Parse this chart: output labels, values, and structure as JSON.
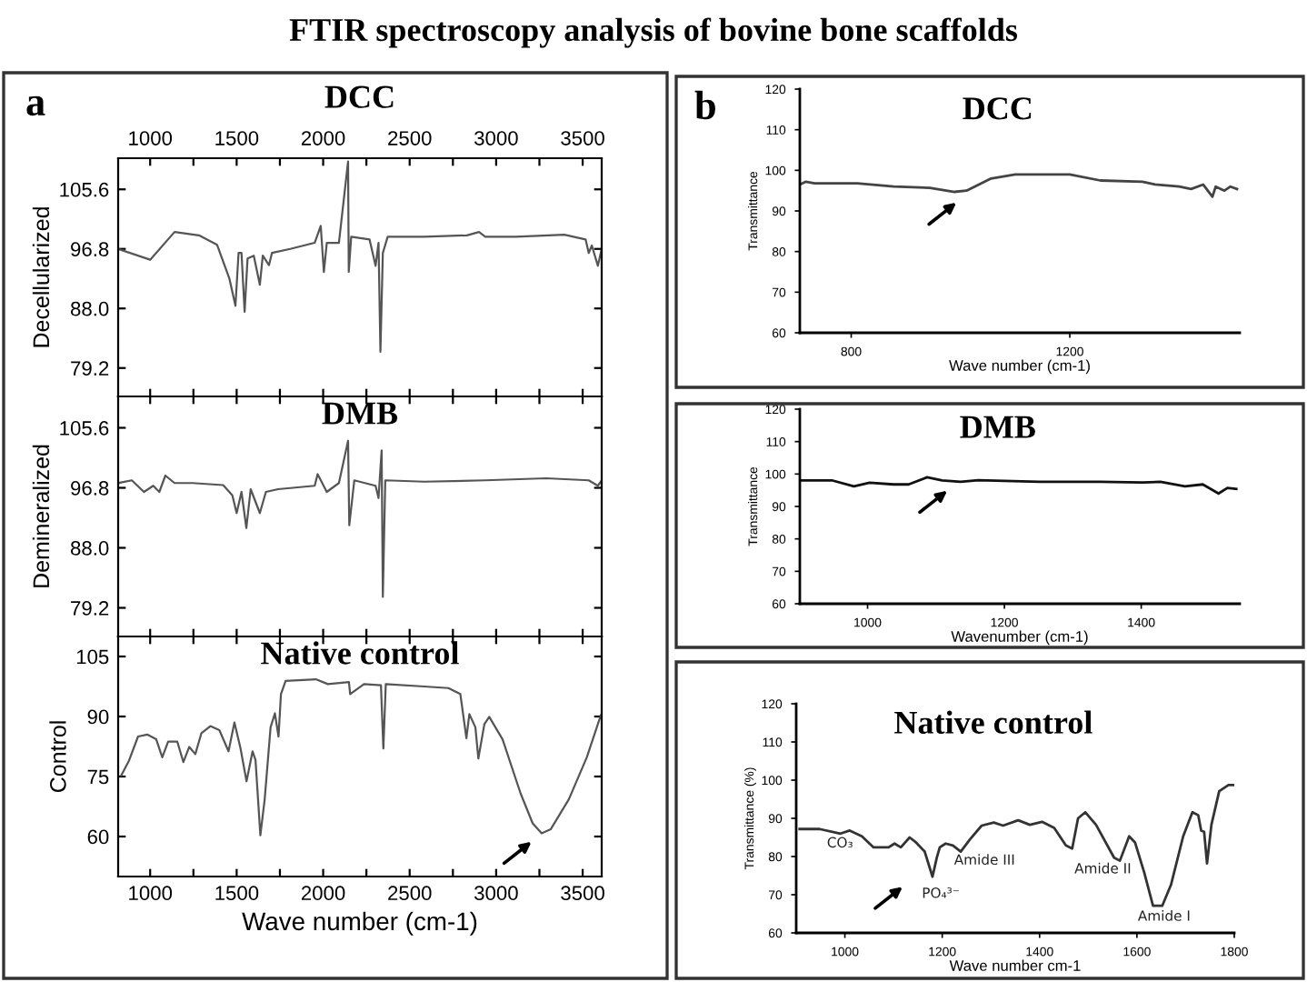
{
  "chart_data": [
    {
      "type": "line",
      "title": "DCC",
      "ylabel": "Decellularized",
      "annotations": [
        "FTIR spectroscopy analysis of bovine bone scaffolds",
        "a"
      ],
      "xlim": [
        815,
        3610
      ],
      "xticks": [
        1000,
        {
          "value": 1250,
          "label": null
        },
        1500,
        {
          "value": 1750,
          "label": null
        },
        2000,
        {
          "value": 2250,
          "label": null
        },
        2500,
        {
          "value": 2750,
          "label": null
        },
        3000,
        {
          "value": 3250,
          "label": null
        },
        3500
      ],
      "ylim": [
        75,
        110.2
      ],
      "yticks": [
        {
          "value": 79.2,
          "label": "79.2"
        },
        {
          "value": 88,
          "label": "88.0"
        },
        {
          "value": 96.8,
          "label": "96.8"
        },
        {
          "value": 105.6,
          "label": "105.6"
        }
      ],
      "series": [
        {
          "color": "#555555",
          "x": [
            815,
            1000,
            1141,
            1282,
            1387,
            1458,
            1493,
            1511,
            1528,
            1546,
            1563,
            1599,
            1634,
            1651,
            1687,
            1704,
            1810,
            1951,
            1986,
            2004,
            2021,
            2091,
            2144,
            2148,
            2162,
            2268,
            2303,
            2320,
            2331,
            2345,
            2373,
            2584,
            2831,
            2901,
            2937,
            3113,
            3394,
            3517,
            3535,
            3553,
            3588,
            3610
          ],
          "values": [
            96.8,
            95.2,
            99.3,
            98.8,
            97.4,
            92.4,
            88.4,
            96.2,
            96.2,
            87.5,
            95.4,
            95.8,
            91.5,
            95.8,
            94.4,
            96.2,
            96.8,
            97.7,
            100.2,
            93.4,
            97.7,
            97.7,
            109.7,
            93.4,
            98.6,
            98.2,
            94.3,
            97.7,
            81.6,
            96.2,
            98.6,
            98.6,
            98.8,
            99.3,
            98.6,
            98.6,
            98.9,
            98.2,
            96.2,
            97.3,
            94.3,
            96.8
          ]
        }
      ]
    },
    {
      "type": "line",
      "title": "DMB",
      "ylabel": "Demineralized",
      "tick_labels": "y",
      "xlim": [
        815,
        3610
      ],
      "xticks": [
        1000,
        {
          "value": 1250,
          "label": null
        },
        1500,
        {
          "value": 1750,
          "label": null
        },
        2000,
        {
          "value": 2250,
          "label": null
        },
        2500,
        {
          "value": 2750,
          "label": null
        },
        3000,
        {
          "value": 3250,
          "label": null
        },
        3500
      ],
      "ylim": [
        75,
        110.2
      ],
      "yticks": [
        {
          "value": 79.2,
          "label": "79.2"
        },
        {
          "value": 88,
          "label": "88.0"
        },
        {
          "value": 96.8,
          "label": "96.8"
        },
        {
          "value": 105.6,
          "label": "105.6"
        }
      ],
      "series": [
        {
          "color": "#555555",
          "x": [
            815,
            894,
            964,
            1018,
            1053,
            1088,
            1141,
            1246,
            1422,
            1475,
            1500,
            1528,
            1556,
            1581,
            1634,
            1669,
            1739,
            1951,
            1968,
            2021,
            2091,
            2144,
            2151,
            2180,
            2303,
            2320,
            2338,
            2345,
            2359,
            2584,
            2937,
            3289,
            3535,
            3588,
            3610
          ],
          "values": [
            97.5,
            97.9,
            96.2,
            97.1,
            96.2,
            98.6,
            97.5,
            97.5,
            97.2,
            95.7,
            93.1,
            96.2,
            90.9,
            96.6,
            93.1,
            96.2,
            96.6,
            97.1,
            98.8,
            96.2,
            97.5,
            103.7,
            91.3,
            97.9,
            97.1,
            95.3,
            102.3,
            80.8,
            97.9,
            97.7,
            97.9,
            98.2,
            97.9,
            97.1,
            97.9
          ]
        }
      ]
    },
    {
      "type": "line",
      "title": "Native control",
      "ylabel": "Control",
      "xlabel": "Wave number (cm-1)",
      "xlim": [
        815,
        3610
      ],
      "xticks": [
        1000,
        {
          "value": 1250,
          "label": null
        },
        1500,
        {
          "value": 1750,
          "label": null
        },
        2000,
        {
          "value": 2250,
          "label": null
        },
        2500,
        {
          "value": 2750,
          "label": null
        },
        3000,
        {
          "value": 3250,
          "label": null
        },
        3500
      ],
      "ylim": [
        50,
        110
      ],
      "yticks": [
        60,
        75,
        90,
        105
      ],
      "series": [
        {
          "color": "#555555",
          "x": [
            833,
            878,
            930,
            983,
            1035,
            1070,
            1104,
            1157,
            1192,
            1226,
            1261,
            1296,
            1348,
            1400,
            1453,
            1487,
            1522,
            1557,
            1592,
            1609,
            1637,
            1662,
            1696,
            1721,
            1742,
            1756,
            1783,
            1958,
            2027,
            2149,
            2156,
            2236,
            2334,
            2348,
            2362,
            2584,
            2724,
            2793,
            2828,
            2845,
            2880,
            2897,
            2932,
            2960,
            3037,
            3141,
            3211,
            3263,
            3315,
            3420,
            3524,
            3605
          ],
          "values": [
            75.3,
            79,
            85,
            85.5,
            84.3,
            79.8,
            83.7,
            83.7,
            78.6,
            82.4,
            80.6,
            85.8,
            87.6,
            86.6,
            81.3,
            88.5,
            82.1,
            73.8,
            81.3,
            79.1,
            60.3,
            69.3,
            87.3,
            90.8,
            85,
            95.6,
            98.9,
            99.3,
            98.1,
            98.6,
            95.6,
            98.1,
            97.8,
            82,
            98.1,
            97.5,
            97.1,
            95.6,
            84.6,
            90.6,
            87.3,
            79.5,
            88.1,
            89.9,
            84.3,
            70.8,
            63.3,
            60.8,
            61.8,
            69.3,
            79.8,
            90.3
          ]
        }
      ]
    },
    {
      "type": "line",
      "title": "DCC",
      "ylabel": "Transmittance",
      "xlabel": "Wave number (cm-1)",
      "annotations": [
        "b"
      ],
      "xlim": [
        706,
        1511
      ],
      "xticks": [
        800,
        1200
      ],
      "ylim": [
        60,
        120
      ],
      "yticks": [
        60,
        70,
        80,
        90,
        100,
        110,
        120
      ],
      "series": [
        {
          "color": "#444444",
          "x": [
            706,
            717,
            733,
            811,
            878,
            944,
            989,
            1011,
            1056,
            1100,
            1200,
            1256,
            1333,
            1356,
            1400,
            1422,
            1444,
            1461,
            1467,
            1483,
            1494,
            1506
          ],
          "values": [
            96.5,
            97.2,
            96.8,
            96.8,
            96,
            95.7,
            94.7,
            95,
            98,
            99,
            99,
            97.5,
            97.2,
            96.5,
            96,
            95.4,
            96.5,
            93.5,
            96,
            95,
            96,
            95.4
          ]
        }
      ]
    },
    {
      "type": "line",
      "title": "DMB",
      "ylabel": "Transmittance",
      "xlabel": "Wavenumber (cm-1)",
      "xlim": [
        901,
        1544
      ],
      "xticks": [
        1000,
        1200,
        1400
      ],
      "ylim": [
        60,
        120
      ],
      "yticks": [
        60,
        70,
        80,
        90,
        100,
        110,
        120
      ],
      "series": [
        {
          "color": "#111111",
          "x": [
            901,
            949,
            980,
            1003,
            1038,
            1060,
            1087,
            1109,
            1136,
            1162,
            1251,
            1340,
            1402,
            1428,
            1464,
            1490,
            1513,
            1526,
            1539
          ],
          "values": [
            98,
            98,
            96.2,
            97.3,
            96.8,
            96.8,
            99,
            98,
            97.6,
            98.1,
            97.6,
            97.6,
            97.4,
            97.6,
            96.2,
            96.8,
            94,
            95.7,
            95.4
          ]
        }
      ]
    },
    {
      "type": "line",
      "title": "Native control",
      "ylabel": "Transmittance (%)",
      "xlabel": "Wave number cm-1",
      "annotations": [
        "CO₃",
        "PO₄³⁻",
        "Amide III",
        "Amide II",
        "Amide I"
      ],
      "xlim": [
        900,
        1800
      ],
      "xticks": [
        1000,
        1200,
        1400,
        1600,
        1800
      ],
      "ylim": [
        60,
        120
      ],
      "yticks": [
        60,
        70,
        80,
        90,
        100,
        110,
        120
      ],
      "series": [
        {
          "color": "#333333",
          "x": [
            907,
            948,
            991,
            1010,
            1035,
            1059,
            1090,
            1102,
            1115,
            1133,
            1146,
            1164,
            1180,
            1189,
            1195,
            1207,
            1222,
            1238,
            1257,
            1281,
            1306,
            1325,
            1356,
            1380,
            1405,
            1430,
            1454,
            1467,
            1479,
            1494,
            1516,
            1553,
            1565,
            1584,
            1596,
            1615,
            1633,
            1652,
            1670,
            1695,
            1714,
            1726,
            1732,
            1738,
            1744,
            1753,
            1769,
            1788,
            1800
          ],
          "values": [
            87.2,
            87.2,
            86,
            86.8,
            85.3,
            82.4,
            82.4,
            83.4,
            82.4,
            85,
            83.7,
            81.3,
            74.7,
            79.8,
            82.4,
            83.4,
            82.9,
            81.3,
            84.5,
            88.1,
            88.9,
            88.1,
            89.5,
            88.3,
            89.1,
            87.5,
            82.9,
            82.1,
            90,
            91.6,
            88.3,
            79.7,
            78.9,
            85.3,
            83.7,
            75.8,
            67.1,
            67.1,
            72.6,
            85.3,
            91.6,
            90.8,
            86.8,
            86.5,
            78.2,
            88.3,
            97.1,
            98.7,
            98.7
          ]
        }
      ]
    }
  ]
}
